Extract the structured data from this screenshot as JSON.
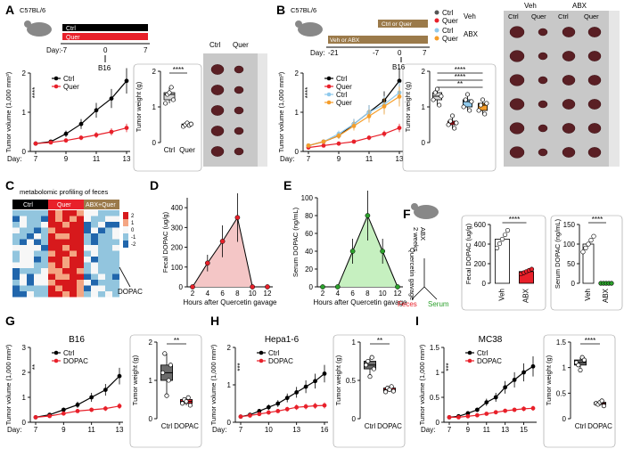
{
  "colors": {
    "ctrl": "#000000",
    "quer": "#e8202a",
    "abx_ctrl": "#8fc9ec",
    "abx_quer": "#f59d2a",
    "dopac": "#e8202a",
    "green": "#2ca02c",
    "pink": "#f4c6c6",
    "lightgreen": "#c6f0c0"
  },
  "A": {
    "label": "A",
    "strain": "C57BL/6",
    "timeline_ctrl": "Ctrl",
    "timeline_quer": "Quer",
    "timeline_day": "Day:",
    "timeline_ticks": [
      "-7",
      "0",
      "7"
    ],
    "inject": "B16",
    "legend": [
      "Ctrl",
      "Quer"
    ],
    "stars": "****",
    "sig": "****",
    "xlabel": "Day:",
    "chart_data": [
      {
        "type": "line",
        "ylabel": "Tumor volume (1,000 mm³)",
        "xlabel": "Day",
        "x": [
          7,
          8,
          9,
          10,
          11,
          12,
          13
        ],
        "xticks": [
          7,
          9,
          11,
          13
        ],
        "ylim": [
          0,
          2
        ],
        "yticks": [
          0,
          1,
          2
        ],
        "series": [
          {
            "name": "Ctrl",
            "values": [
              0.2,
              0.25,
              0.45,
              0.7,
              1.05,
              1.35,
              1.8
            ]
          },
          {
            "name": "Quer",
            "values": [
              0.2,
              0.23,
              0.28,
              0.35,
              0.42,
              0.5,
              0.6
            ]
          }
        ]
      },
      {
        "type": "box",
        "ylabel": "Tumor weight (g)",
        "categories": [
          "Ctrl",
          "Quer"
        ],
        "ylim": [
          0,
          2
        ],
        "yticks": [
          0,
          1,
          2
        ],
        "values": [
          [
            1.1,
            1.35,
            1.4,
            1.55,
            1.2
          ],
          [
            0.45,
            0.5,
            0.55,
            0.48,
            0.52
          ]
        ]
      }
    ],
    "photo_labels": [
      "Ctrl",
      "Quer"
    ]
  },
  "B": {
    "label": "B",
    "strain": "C57BL/6",
    "bar_top": "Ctrl or Quer",
    "bar_bottom": "Veh or ABX",
    "timeline_day": "Day:",
    "timeline_ticks": [
      "-21",
      "-7",
      "0",
      "7"
    ],
    "inject": "B16",
    "legend": [
      "Ctrl",
      "Quer",
      "Ctrl",
      "Quer"
    ],
    "group_veh": "Veh",
    "group_abx": "ABX",
    "stars": "****",
    "sig": [
      "****",
      "****",
      "**"
    ],
    "xlabel": "Day:",
    "chart_data": [
      {
        "type": "line",
        "ylabel": "Tumor volume (1,000 mm³)",
        "xlabel": "Day",
        "x": [
          7,
          8,
          9,
          10,
          11,
          12,
          13
        ],
        "xticks": [
          7,
          9,
          11,
          13
        ],
        "ylim": [
          0,
          2
        ],
        "yticks": [
          0,
          1,
          2
        ],
        "series": [
          {
            "name": "Veh Ctrl",
            "values": [
              0.15,
              0.25,
              0.4,
              0.7,
              1.0,
              1.3,
              1.8
            ]
          },
          {
            "name": "Veh Quer",
            "values": [
              0.1,
              0.15,
              0.2,
              0.25,
              0.35,
              0.45,
              0.6
            ]
          },
          {
            "name": "ABX Ctrl",
            "values": [
              0.15,
              0.25,
              0.45,
              0.7,
              1.0,
              1.2,
              1.5
            ]
          },
          {
            "name": "ABX Quer",
            "values": [
              0.15,
              0.25,
              0.4,
              0.65,
              0.9,
              1.15,
              1.4
            ]
          }
        ]
      },
      {
        "type": "box",
        "ylabel": "Tumor weight (g)",
        "categories": [
          "Veh Ctrl",
          "Veh Quer",
          "ABX Ctrl",
          "ABX Quer"
        ],
        "ylim": [
          0,
          2
        ],
        "yticks": [
          0,
          1,
          2
        ],
        "values": [
          [
            1.2,
            1.4,
            1.5,
            1.05,
            1.3
          ],
          [
            0.5,
            0.6,
            0.75,
            0.4,
            0.55
          ],
          [
            1.0,
            1.2,
            1.35,
            0.9,
            1.15
          ],
          [
            0.9,
            1.05,
            1.2,
            0.8,
            1.1
          ]
        ]
      }
    ],
    "photo_labels": [
      "Veh",
      "ABX",
      "Ctrl",
      "Quer",
      "Ctrl",
      "Quer"
    ]
  },
  "C": {
    "label": "C",
    "title": "metabolomic profiling of feces",
    "groups": [
      "Ctrl",
      "Quer",
      "ABX+Quer"
    ],
    "scale": [
      "2",
      "1",
      "0",
      "-1",
      "-2"
    ],
    "annot": "DOPAC"
  },
  "D": {
    "label": "D",
    "chart_data": {
      "type": "line",
      "ylabel": "Fecal DOPAC (ug/g)",
      "xlabel": "Hours after Quercetin gavage",
      "x": [
        2,
        4,
        6,
        8,
        10,
        12
      ],
      "values": [
        0,
        120,
        230,
        350,
        0,
        0
      ],
      "ylim": [
        0,
        450
      ],
      "yticks": [
        0,
        100,
        200,
        300,
        400
      ]
    }
  },
  "E": {
    "label": "E",
    "chart_data": {
      "type": "line",
      "ylabel": "Serum DOPAC (ng/mL)",
      "xlabel": "Hours after Quercetin gavage",
      "x": [
        2,
        4,
        6,
        8,
        10,
        12
      ],
      "values": [
        0,
        0,
        40,
        80,
        40,
        0
      ],
      "ylim": [
        0,
        100
      ],
      "yticks": [
        0,
        20,
        40,
        60,
        80,
        100
      ]
    }
  },
  "F": {
    "label": "F",
    "mouse_label": "ABX\n2 weeks",
    "gavage": "Quercetin gavage",
    "feces": "Feces",
    "serum": "Serum",
    "sig": [
      "****",
      "****"
    ],
    "chart_data": [
      {
        "type": "bar",
        "ylabel": "Fecal DOPAC (ug/g)",
        "categories": [
          "Veh",
          "ABX"
        ],
        "values": [
          450,
          120
        ],
        "ylim": [
          0,
          600
        ],
        "yticks": [
          0,
          200,
          400,
          600
        ]
      },
      {
        "type": "bar",
        "ylabel": "Serum DOPAC (ng/mL)",
        "categories": [
          "Veh",
          "ABX"
        ],
        "values": [
          100,
          0
        ],
        "ylim": [
          0,
          150
        ],
        "yticks": [
          0,
          50,
          100,
          150
        ]
      }
    ]
  },
  "G": {
    "label": "G",
    "title": "B16",
    "legend": [
      "Ctrl",
      "DOPAC"
    ],
    "stars": "**",
    "sig": "**",
    "chart_data": [
      {
        "type": "line",
        "ylabel": "Tumor volume (1,000 mm³)",
        "xlabel": "Day",
        "x": [
          7,
          8,
          9,
          10,
          11,
          12,
          13
        ],
        "xticks": [
          7,
          9,
          11,
          13
        ],
        "ylim": [
          0,
          3
        ],
        "yticks": [
          0,
          1,
          2,
          3
        ],
        "series": [
          {
            "name": "Ctrl",
            "values": [
              0.2,
              0.3,
              0.5,
              0.7,
              1.0,
              1.3,
              1.85
            ]
          },
          {
            "name": "DOPAC",
            "values": [
              0.2,
              0.25,
              0.35,
              0.45,
              0.5,
              0.55,
              0.65
            ]
          }
        ]
      },
      {
        "type": "box",
        "ylabel": "Tumor weight (g)",
        "categories": [
          "Ctrl",
          "DOPAC"
        ],
        "ylim": [
          0,
          2
        ],
        "yticks": [
          0,
          1,
          2
        ],
        "values": [
          [
            1.2,
            1.7,
            0.6,
            1.0,
            1.4
          ],
          [
            0.4,
            0.5,
            0.45,
            0.55,
            0.35
          ]
        ]
      }
    ]
  },
  "H": {
    "label": "H",
    "title": "Hepa1-6",
    "legend": [
      "Ctrl",
      "DOPAC"
    ],
    "stars": "***",
    "sig": "**",
    "chart_data": [
      {
        "type": "line",
        "ylabel": "Tumor volume (1,000 mm³)",
        "xlabel": "Day",
        "x": [
          7,
          8,
          9,
          10,
          11,
          12,
          13,
          14,
          15,
          16
        ],
        "xticks": [
          7,
          10,
          13,
          16
        ],
        "ylim": [
          0,
          2
        ],
        "yticks": [
          0,
          1,
          2
        ],
        "series": [
          {
            "name": "Ctrl",
            "values": [
              0.15,
              0.2,
              0.3,
              0.4,
              0.5,
              0.65,
              0.8,
              0.95,
              1.1,
              1.3
            ]
          },
          {
            "name": "DOPAC",
            "values": [
              0.15,
              0.18,
              0.22,
              0.26,
              0.3,
              0.35,
              0.4,
              0.42,
              0.44,
              0.45
            ]
          }
        ]
      },
      {
        "type": "box",
        "ylabel": "Tumor weight (g)",
        "categories": [
          "Ctrl",
          "DOPAC"
        ],
        "ylim": [
          0,
          1
        ],
        "yticks": [
          0,
          0.5,
          1
        ],
        "values": [
          [
            0.7,
            0.75,
            0.55,
            0.8,
            0.65
          ],
          [
            0.35,
            0.4,
            0.38,
            0.42,
            0.36
          ]
        ]
      }
    ]
  },
  "I": {
    "label": "I",
    "title": "MC38",
    "legend": [
      "Ctrl",
      "DOPAC"
    ],
    "stars": "***",
    "sig": "****",
    "chart_data": [
      {
        "type": "line",
        "ylabel": "Tumor volume (1,000 mm³)",
        "xlabel": "Day",
        "x": [
          7,
          8,
          9,
          10,
          11,
          12,
          13,
          14,
          15,
          16
        ],
        "xticks": [
          7,
          9,
          11,
          13,
          15
        ],
        "ylim": [
          0,
          1.5
        ],
        "yticks": [
          0,
          0.5,
          1,
          1.5
        ],
        "series": [
          {
            "name": "Ctrl",
            "values": [
              0.1,
              0.12,
              0.18,
              0.25,
              0.4,
              0.5,
              0.7,
              0.85,
              1.0,
              1.12
            ]
          },
          {
            "name": "DOPAC",
            "values": [
              0.1,
              0.1,
              0.12,
              0.14,
              0.17,
              0.2,
              0.23,
              0.25,
              0.27,
              0.28
            ]
          }
        ]
      },
      {
        "type": "box",
        "ylabel": "Tumor weight (g)",
        "categories": [
          "Ctrl",
          "DOPAC"
        ],
        "ylim": [
          0,
          1.5
        ],
        "yticks": [
          0,
          0.5,
          1,
          1.5
        ],
        "values": [
          [
            1.1,
            1.05,
            0.95,
            1.2,
            1.15
          ],
          [
            0.3,
            0.28,
            0.32,
            0.35,
            0.25
          ]
        ]
      }
    ]
  }
}
